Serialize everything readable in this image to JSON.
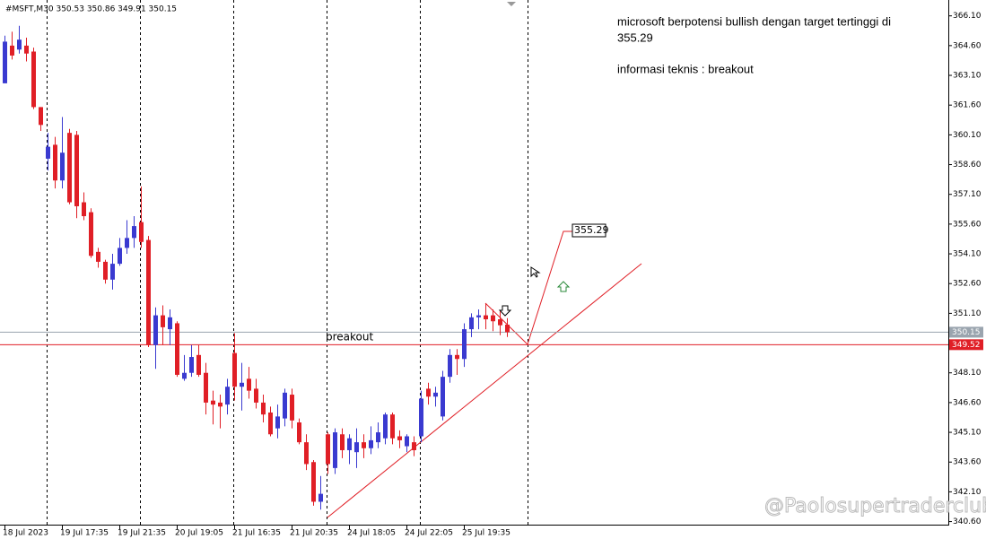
{
  "chart_data": {
    "type": "candlestick",
    "title": "#MSFT,M30  350.53 350.86 349.91 350.15",
    "categories": [
      "18 Jul 2023",
      null,
      null,
      null,
      null,
      null,
      null,
      null,
      "19 Jul 17:35",
      null,
      null,
      null,
      null,
      null,
      null,
      null,
      "19 Jul 21:35",
      null,
      null,
      null,
      null,
      null,
      null,
      null,
      "20 Jul 19:05",
      null,
      null,
      null,
      null,
      null,
      null,
      null,
      "21 Jul 16:35",
      null,
      null,
      null,
      null,
      null,
      null,
      null,
      "21 Jul 20:35",
      null,
      null,
      null,
      null,
      null,
      null,
      null,
      "24 Jul 18:05",
      null,
      null,
      null,
      null,
      null,
      null,
      null,
      "24 Jul 22:05",
      null,
      null,
      null,
      null,
      null,
      null,
      null,
      "25 Jul 19:35",
      null,
      null,
      null,
      null,
      null,
      null
    ],
    "open": [
      362.7,
      364.6,
      364.4,
      364.6,
      364.3,
      361.5,
      358.9,
      359.6,
      357.8,
      360.2,
      360.1,
      356.7,
      356.2,
      354.2,
      353.7,
      352.8,
      353.6,
      354.4,
      354.9,
      355.7,
      354.8,
      349.5,
      351.0,
      350.3,
      350.6,
      347.8,
      348.1,
      349.0,
      348.1,
      346.7,
      346.6,
      346.5,
      349.1,
      347.4,
      347.8,
      347.3,
      346.6,
      346.1,
      345.3,
      345.8,
      347.0,
      345.6,
      344.6,
      343.6,
      341.6,
      345.0,
      343.3,
      345.0,
      344.2,
      344.1,
      344.6,
      344.3,
      344.6,
      344.8,
      346.0,
      344.9,
      344.4,
      344.6,
      344.9,
      347.3,
      346.9,
      345.9,
      347.9,
      349.0,
      348.8,
      350.3,
      350.9,
      351.0,
      351.0,
      350.8,
      350.53
    ],
    "high": [
      365.1,
      365.3,
      365.6,
      365.0,
      364.5,
      361.5,
      360.2,
      360.0,
      361.0,
      360.4,
      360.3,
      357.2,
      356.4,
      354.4,
      353.8,
      354.1,
      354.9,
      355.8,
      356.0,
      357.5,
      355.0,
      351.4,
      351.5,
      351.3,
      350.7,
      349.0,
      349.5,
      349.5,
      348.6,
      347.2,
      347.0,
      347.8,
      350.1,
      348.6,
      348.4,
      347.8,
      347.0,
      346.4,
      346.5,
      347.3,
      347.3,
      345.8,
      345.0,
      343.7,
      342.9,
      345.1,
      345.3,
      345.3,
      345.0,
      345.3,
      345.0,
      345.4,
      345.6,
      346.1,
      346.1,
      345.2,
      345.0,
      344.9,
      347.2,
      347.6,
      347.4,
      348.2,
      349.3,
      349.3,
      350.6,
      351.1,
      351.3,
      351.6,
      351.3,
      351.2,
      350.86
    ],
    "low": [
      362.7,
      363.9,
      364.2,
      363.8,
      361.4,
      360.3,
      358.3,
      357.4,
      357.4,
      356.6,
      355.9,
      355.8,
      353.9,
      353.4,
      352.6,
      352.3,
      353.5,
      354.1,
      354.4,
      354.4,
      349.4,
      348.3,
      349.5,
      349.5,
      347.9,
      347.7,
      347.9,
      347.9,
      346.0,
      345.5,
      345.3,
      346.0,
      346.7,
      346.2,
      346.8,
      346.3,
      345.6,
      344.9,
      344.8,
      345.4,
      345.3,
      344.5,
      343.2,
      341.4,
      341.2,
      343.0,
      343.0,
      343.8,
      343.5,
      343.3,
      343.8,
      344.0,
      344.3,
      344.5,
      344.5,
      344.3,
      344.1,
      343.9,
      344.6,
      346.5,
      346.4,
      345.7,
      347.6,
      348.0,
      348.4,
      349.9,
      350.3,
      350.3,
      350.2,
      350.0,
      349.91
    ],
    "close": [
      364.8,
      364.1,
      364.9,
      364.2,
      361.5,
      360.6,
      359.5,
      357.8,
      359.2,
      356.7,
      356.5,
      356.0,
      354.0,
      353.7,
      352.8,
      353.6,
      354.4,
      354.9,
      355.5,
      354.7,
      349.5,
      351.0,
      350.4,
      350.9,
      348.0,
      348.1,
      348.9,
      348.0,
      346.6,
      346.5,
      346.4,
      347.4,
      347.4,
      347.6,
      347.2,
      346.6,
      346.0,
      345.0,
      345.9,
      347.1,
      345.7,
      344.6,
      343.5,
      341.6,
      342.0,
      343.5,
      345.1,
      344.2,
      344.8,
      344.6,
      344.3,
      344.7,
      345.1,
      346.0,
      344.8,
      344.7,
      344.9,
      344.2,
      346.8,
      346.9,
      347.1,
      347.9,
      349.0,
      348.8,
      350.3,
      350.9,
      351.0,
      350.8,
      350.7,
      350.5,
      350.15
    ],
    "up_color": "#3a3ad0",
    "down_color": "#e01f26",
    "ylim": [
      340.4,
      366.9
    ],
    "yticks": [
      {
        "value": 366.1,
        "label": "366.10"
      },
      {
        "value": 364.6,
        "label": "364.60"
      },
      {
        "value": 363.1,
        "label": "363.10"
      },
      {
        "value": 361.6,
        "label": "361.60"
      },
      {
        "value": 360.1,
        "label": "360.10"
      },
      {
        "value": 358.6,
        "label": "358.60"
      },
      {
        "value": 357.1,
        "label": "357.10"
      },
      {
        "value": 355.6,
        "label": "355.60"
      },
      {
        "value": 354.1,
        "label": "354.10"
      },
      {
        "value": 352.6,
        "label": "352.60"
      },
      {
        "value": 351.1,
        "label": "351.10"
      },
      {
        "value": 349.6,
        "label": "349.60"
      },
      {
        "value": 348.1,
        "label": "348.10"
      },
      {
        "value": 346.6,
        "label": "346.60"
      },
      {
        "value": 345.1,
        "label": "345.10"
      },
      {
        "value": 343.6,
        "label": "343.60"
      },
      {
        "value": 342.1,
        "label": "342.10"
      },
      {
        "value": 340.6,
        "label": "340.60"
      }
    ],
    "hlines": [
      {
        "value": 350.15,
        "color": "#9aa4ae"
      },
      {
        "value": 349.52,
        "color": "#e01f26"
      }
    ],
    "annotations": [
      "microsoft berpotensi bullish dengan target tertinggi di",
      "355.29",
      "informasi teknis : breakout",
      "breakout"
    ],
    "target_label": "355.29",
    "watermark": "@Paolosupertraderclub"
  }
}
